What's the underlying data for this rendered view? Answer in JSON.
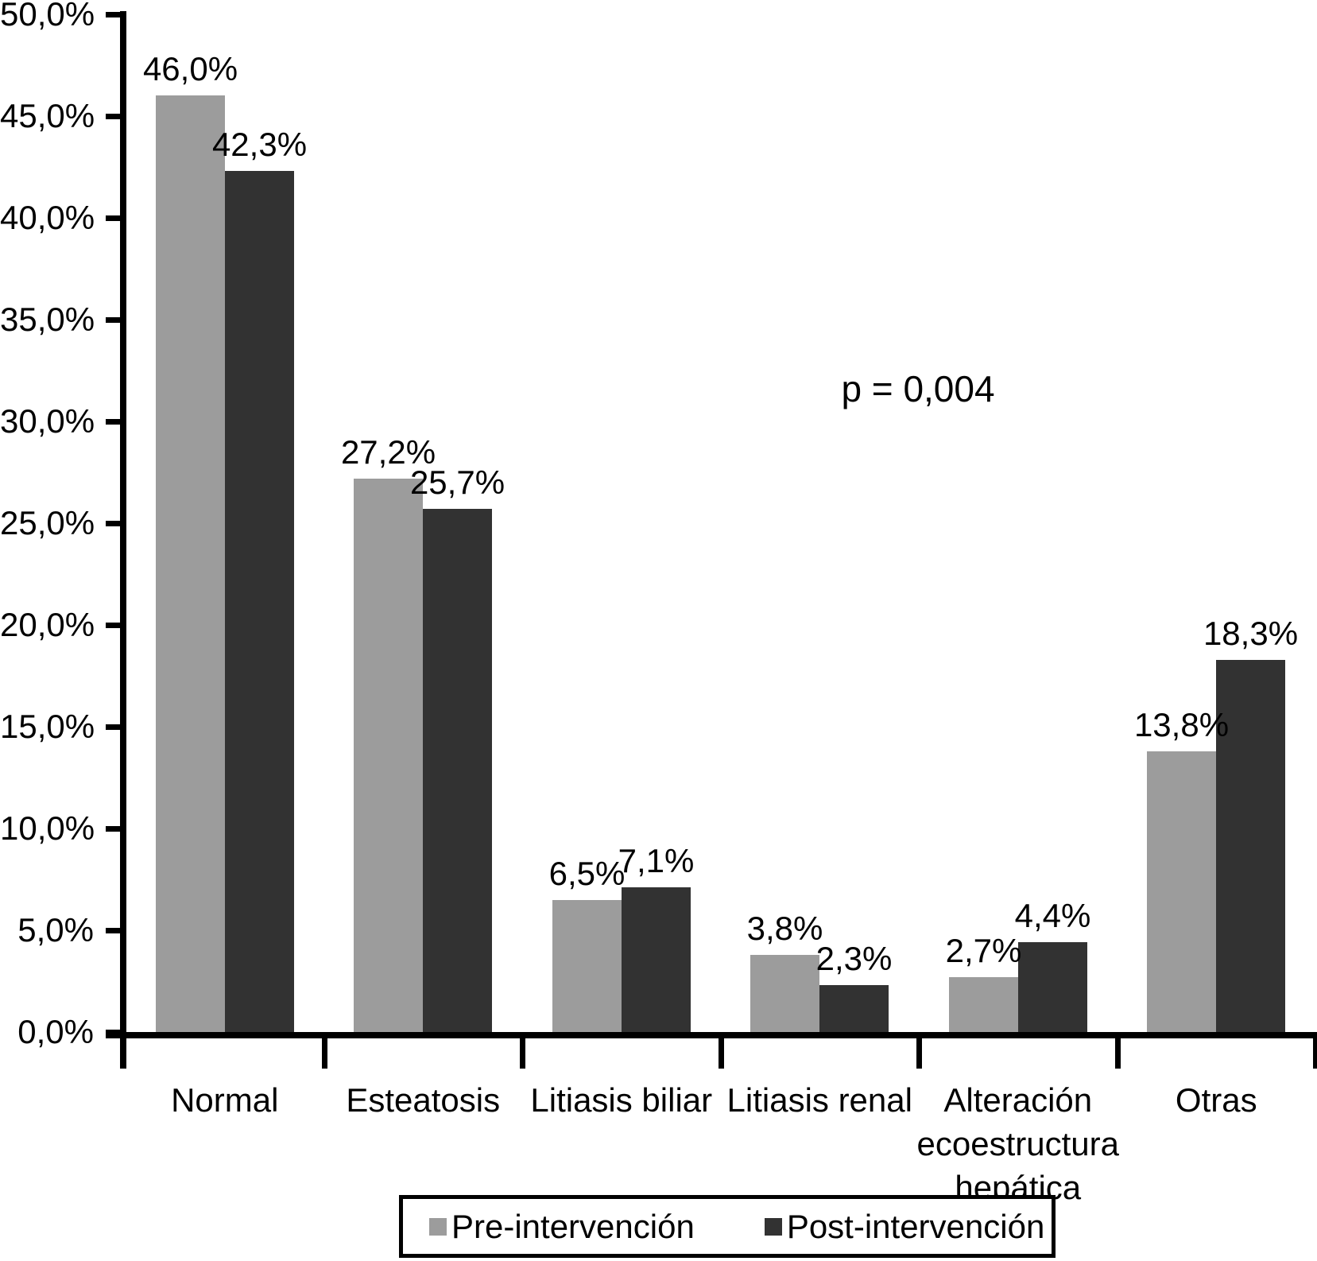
{
  "chart_data": {
    "type": "bar",
    "title": "",
    "xlabel": "",
    "ylabel": "",
    "categories": [
      "Normal",
      "Esteatosis",
      "Litiasis biliar",
      "Litiasis renal",
      "Alteración ecoestructura hepática",
      "Otras"
    ],
    "series": [
      {
        "name": "Pre-intervención",
        "color": "#9c9c9c",
        "values": [
          46.0,
          27.2,
          6.5,
          3.8,
          2.7,
          13.8
        ],
        "labels": [
          "46,0%",
          "27,2%",
          "6,5%",
          "3,8%",
          "2,7%",
          "13,8%"
        ]
      },
      {
        "name": "Post-intervención",
        "color": "#323232",
        "values": [
          42.3,
          25.7,
          7.1,
          2.3,
          4.4,
          18.3
        ],
        "labels": [
          "42,3%",
          "25,7%",
          "7,1%",
          "2,3%",
          "4,4%",
          "18,3%"
        ]
      }
    ],
    "annotation": "p = 0,004",
    "ylim": [
      0,
      50
    ],
    "ytick_step": 5,
    "yticks": [
      "0,0%",
      "5,0%",
      "10,0%",
      "15,0%",
      "20,0%",
      "25,0%",
      "30,0%",
      "35,0%",
      "40,0%",
      "45,0%",
      "50,0%"
    ],
    "grid": false,
    "legend_position": "bottom",
    "axis_color": "#000000",
    "background_color": "#ffffff"
  }
}
